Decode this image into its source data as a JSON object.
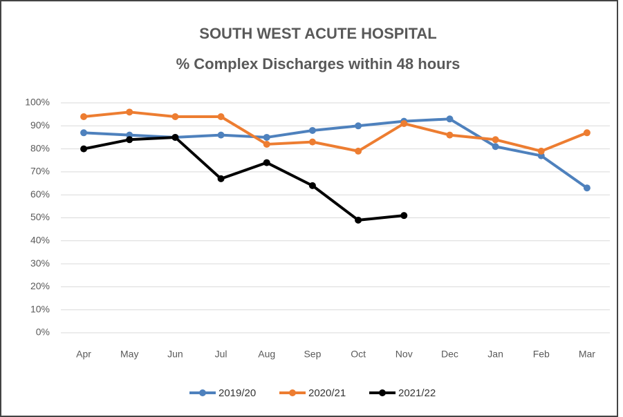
{
  "chart_data": {
    "type": "line",
    "title": "SOUTH WEST ACUTE HOSPITAL",
    "subtitle": "% Complex Discharges within 48 hours",
    "categories": [
      "Apr",
      "May",
      "Jun",
      "Jul",
      "Aug",
      "Sep",
      "Oct",
      "Nov",
      "Dec",
      "Jan",
      "Feb",
      "Mar"
    ],
    "series": [
      {
        "name": "2019/20",
        "color": "#4e81bd",
        "values": [
          87,
          86,
          85,
          86,
          85,
          88,
          90,
          92,
          93,
          81,
          77,
          63
        ]
      },
      {
        "name": "2020/21",
        "color": "#ed7d31",
        "values": [
          94,
          96,
          94,
          94,
          82,
          83,
          79,
          91,
          86,
          84,
          79,
          87
        ]
      },
      {
        "name": "2021/22",
        "color": "#000000",
        "values": [
          80,
          84,
          85,
          67,
          74,
          64,
          49,
          51,
          null,
          null,
          null,
          null
        ]
      }
    ],
    "ylim": [
      0,
      100
    ],
    "yticks": [
      {
        "value": 0,
        "label": "0%"
      },
      {
        "value": 10,
        "label": "10%"
      },
      {
        "value": 20,
        "label": "20%"
      },
      {
        "value": 30,
        "label": "30%"
      },
      {
        "value": 40,
        "label": "40%"
      },
      {
        "value": 50,
        "label": "50%"
      },
      {
        "value": 60,
        "label": "60%"
      },
      {
        "value": 70,
        "label": "70%"
      },
      {
        "value": 80,
        "label": "80%"
      },
      {
        "value": 90,
        "label": "90%"
      },
      {
        "value": 100,
        "label": "100%"
      }
    ],
    "grid": true,
    "legend": "bottom"
  }
}
